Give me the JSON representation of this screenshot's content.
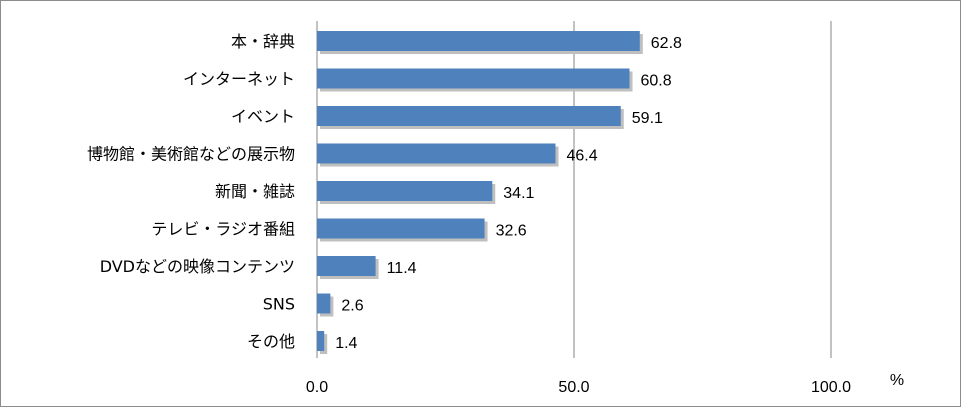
{
  "chart_data": {
    "type": "bar",
    "orientation": "horizontal",
    "categories": [
      "本・辞典",
      "インターネット",
      "イベント",
      "博物館・美術館などの展示物",
      "新聞・雑誌",
      "テレビ・ラジオ番組",
      "DVDなどの映像コンテンツ",
      "SNS",
      "その他"
    ],
    "values": [
      62.8,
      60.8,
      59.1,
      46.4,
      34.1,
      32.6,
      11.4,
      2.6,
      1.4
    ],
    "data_labels": [
      "62.8",
      "60.8",
      "59.1",
      "46.4",
      "34.1",
      "32.6",
      "11.4",
      "2.6",
      "1.4"
    ],
    "xlim": [
      0,
      100
    ],
    "x_ticks": [
      0,
      50,
      100
    ],
    "x_tick_labels": [
      "0.0",
      "50.0",
      "100.0"
    ],
    "x_unit": "%",
    "grid": "vertical",
    "legend": "none",
    "bar_color": "#4F81BD"
  }
}
